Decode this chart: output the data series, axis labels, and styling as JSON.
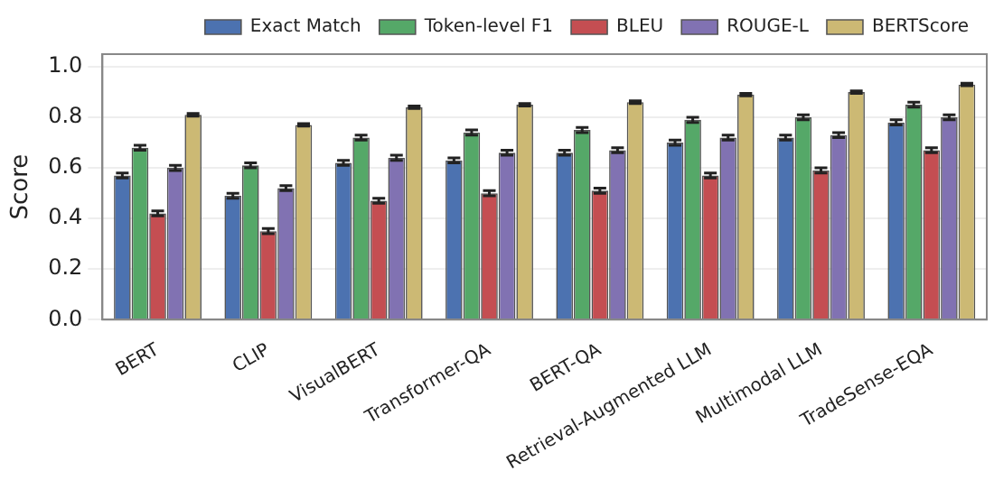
{
  "chart_data": {
    "type": "bar",
    "ylabel": "Score",
    "categories": [
      "BERT",
      "CLIP",
      "VisualBERT",
      "Transformer-QA",
      "BERT-QA",
      "Retrieval-Augmented LLM",
      "Multimodal LLM",
      "TradeSense-EQA"
    ],
    "series": [
      {
        "name": "Exact Match",
        "color": "#4c72b0",
        "values": [
          0.57,
          0.49,
          0.62,
          0.63,
          0.66,
          0.7,
          0.72,
          0.78
        ],
        "errors": [
          0.01,
          0.01,
          0.01,
          0.01,
          0.01,
          0.01,
          0.01,
          0.01
        ]
      },
      {
        "name": "Token-level F1",
        "color": "#55a868",
        "values": [
          0.68,
          0.61,
          0.72,
          0.74,
          0.75,
          0.79,
          0.8,
          0.85
        ],
        "errors": [
          0.01,
          0.01,
          0.01,
          0.01,
          0.01,
          0.01,
          0.01,
          0.01
        ]
      },
      {
        "name": "BLEU",
        "color": "#c44e52",
        "values": [
          0.42,
          0.35,
          0.47,
          0.5,
          0.51,
          0.57,
          0.59,
          0.67
        ],
        "errors": [
          0.01,
          0.01,
          0.01,
          0.01,
          0.01,
          0.01,
          0.01,
          0.01
        ]
      },
      {
        "name": "ROUGE-L",
        "color": "#8172b2",
        "values": [
          0.6,
          0.52,
          0.64,
          0.66,
          0.67,
          0.72,
          0.73,
          0.8
        ],
        "errors": [
          0.01,
          0.01,
          0.01,
          0.01,
          0.01,
          0.01,
          0.01,
          0.01
        ]
      },
      {
        "name": "BERTScore",
        "color": "#ccb974",
        "values": [
          0.81,
          0.77,
          0.84,
          0.85,
          0.86,
          0.89,
          0.9,
          0.93
        ],
        "errors": [
          0.005,
          0.005,
          0.005,
          0.005,
          0.005,
          0.005,
          0.005,
          0.005
        ]
      }
    ],
    "ylim": [
      0,
      1.05
    ],
    "yticks": [
      {
        "value": 0,
        "label": "0.0"
      },
      {
        "value": 0.2,
        "label": "0.2"
      },
      {
        "value": 0.4,
        "label": "0.4"
      },
      {
        "value": 0.6,
        "label": "0.6"
      },
      {
        "value": 0.8,
        "label": "0.8"
      },
      {
        "value": 1,
        "label": "1.0"
      }
    ],
    "grid": "y",
    "legend": "top"
  }
}
